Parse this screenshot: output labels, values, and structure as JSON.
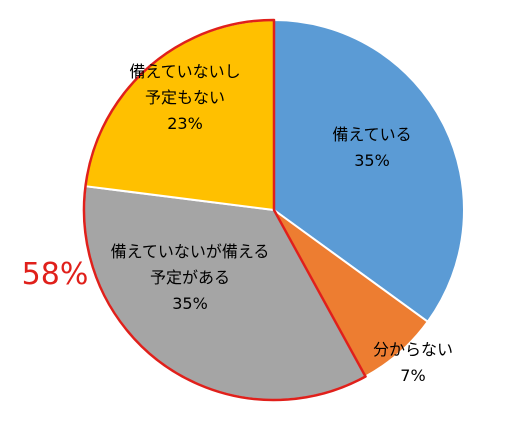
{
  "chart_data": {
    "type": "pie",
    "start_angle_deg": 0,
    "direction": "clockwise",
    "slices": [
      {
        "name": "備えている",
        "value": 35,
        "label_lines": [
          "備えている",
          "35%"
        ],
        "color": "#5b9bd5"
      },
      {
        "name": "分からない",
        "value": 7,
        "label_lines": [
          "分からない",
          "7%"
        ],
        "color": "#ed7d31"
      },
      {
        "name": "備えていないが備える予定がある",
        "value": 35,
        "label_lines": [
          "備えていないが備える",
          "予定がある",
          "35%"
        ],
        "color": "#a5a5a5"
      },
      {
        "name": "備えていないし予定もない",
        "value": 23,
        "label_lines": [
          "備えていないし",
          "予定もない",
          "23%"
        ],
        "color": "#ffc000"
      }
    ],
    "highlight": {
      "label": "58%",
      "covers": [
        "備えていないが備える予定がある",
        "備えていないし予定もない"
      ],
      "outline_color": "#e0201b"
    },
    "slice_border_color": "#ffffff"
  }
}
